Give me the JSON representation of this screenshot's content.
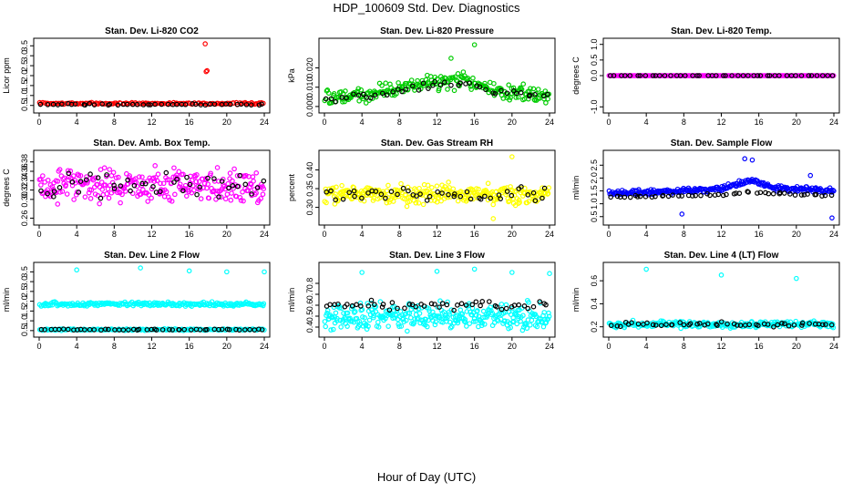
{
  "figure": {
    "title": "HDP_100609  Std. Dev. Diagnostics",
    "xlabel": "Hour of Day (UTC)"
  },
  "chart_data": [
    {
      "type": "scatter",
      "title": "Stan. Dev. Li-820 CO2",
      "ylabel": "Licor ppm",
      "xlim": [
        0,
        24
      ],
      "xticks": [
        0,
        4,
        8,
        12,
        16,
        20,
        24
      ],
      "ylim": [
        0.35,
        3.65
      ],
      "yticks": [
        "0.5",
        "1.0",
        "1.5",
        "2.0",
        "2.5",
        "3.0",
        "3.5"
      ],
      "ytick_values": [
        0.5,
        1,
        1.5,
        2,
        2.5,
        3,
        3.5
      ],
      "series": [
        {
          "color": "#ff0000",
          "pattern": {
            "center": 0.6,
            "spread": 0.07,
            "count": 130
          },
          "outliers": [
            [
              17.7,
              3.6
            ],
            [
              17.8,
              2.2
            ],
            [
              17.9,
              2.25
            ]
          ]
        },
        {
          "color": "#000000",
          "pattern": {
            "center": 0.55,
            "spread": 0.05,
            "count": 45
          }
        }
      ]
    },
    {
      "type": "scatter",
      "title": "Stan. Dev. Li-820 Pressure",
      "ylabel": "kPa",
      "xlim": [
        0,
        24
      ],
      "xticks": [
        0,
        4,
        8,
        12,
        16,
        20,
        24
      ],
      "ylim": [
        -0.001,
        0.033
      ],
      "yticks": [
        "0.000",
        "0.010",
        "0.020"
      ],
      "ytick_values": [
        0,
        0.01,
        0.02
      ],
      "series": [
        {
          "color": "#00cc00",
          "pattern": {
            "profile": [
              [
                0,
                0.004
              ],
              [
                4,
                0.005
              ],
              [
                8,
                0.01
              ],
              [
                12,
                0.013
              ],
              [
                15,
                0.014
              ],
              [
                18,
                0.008
              ],
              [
                24,
                0.006
              ]
            ],
            "spread": 0.006,
            "count": 240
          },
          "outliers": [
            [
              16,
              0.032
            ],
            [
              13.5,
              0.025
            ]
          ]
        },
        {
          "color": "#000000",
          "pattern": {
            "profile": [
              [
                0,
                0.004
              ],
              [
                4,
                0.005
              ],
              [
                8,
                0.009
              ],
              [
                12,
                0.011
              ],
              [
                15,
                0.012
              ],
              [
                18,
                0.007
              ],
              [
                24,
                0.006
              ]
            ],
            "spread": 0.003,
            "count": 45
          }
        }
      ]
    },
    {
      "type": "scatter",
      "title": "Stan. Dev. Li-820 Temp.",
      "ylabel": "degrees C",
      "xlim": [
        0,
        24
      ],
      "xticks": [
        0,
        4,
        8,
        12,
        16,
        20,
        24
      ],
      "ylim": [
        -1.05,
        1.05
      ],
      "yticks": [
        "-1.0",
        "0.0",
        "0.5",
        "1.0"
      ],
      "ytick_values": [
        -1,
        0,
        0.5,
        1
      ],
      "series": [
        {
          "color": "#ff00ff",
          "pattern": {
            "center": 0,
            "spread": 0,
            "count": 220
          }
        },
        {
          "color": "#000000",
          "pattern": {
            "center": 0,
            "spread": 0,
            "count": 45
          }
        }
      ]
    },
    {
      "type": "scatter",
      "title": "Stan. Dev. Amb. Box Temp.",
      "ylabel": "degrees C",
      "xlim": [
        0,
        24
      ],
      "xticks": [
        0,
        4,
        8,
        12,
        16,
        20,
        24
      ],
      "ylim": [
        0.255,
        0.395
      ],
      "yticks": [
        "0.26",
        "0.30",
        "0.32",
        "0.34",
        "0.36",
        "0.38"
      ],
      "ytick_values": [
        0.26,
        0.3,
        0.32,
        0.34,
        0.36,
        0.38
      ],
      "series": [
        {
          "color": "#ff00ff",
          "pattern": {
            "center": 0.33,
            "spread": 0.05,
            "count": 280
          }
        },
        {
          "color": "#000000",
          "pattern": {
            "center": 0.33,
            "spread": 0.04,
            "count": 45
          }
        }
      ]
    },
    {
      "type": "scatter",
      "title": "Stan. Dev. Gas Stream RH",
      "ylabel": "percent",
      "xlim": [
        0,
        24
      ],
      "xticks": [
        0,
        4,
        8,
        12,
        16,
        20,
        24
      ],
      "ylim": [
        0.265,
        0.44
      ],
      "yticks": [
        "0.30",
        "0.35",
        "0.40"
      ],
      "ytick_values": [
        0.3,
        0.35,
        0.4
      ],
      "series": [
        {
          "color": "#ffff00",
          "pattern": {
            "center": 0.335,
            "spread": 0.035,
            "count": 300
          },
          "outliers": [
            [
              20,
              0.435
            ],
            [
              18,
              0.27
            ]
          ]
        },
        {
          "color": "#000000",
          "pattern": {
            "center": 0.335,
            "spread": 0.025,
            "count": 45
          }
        }
      ]
    },
    {
      "type": "scatter",
      "title": "Stan. Dev. Sample Flow",
      "ylabel": "ml/min",
      "xlim": [
        0,
        24
      ],
      "xticks": [
        0,
        4,
        8,
        12,
        16,
        20,
        24
      ],
      "ylim": [
        0.35,
        2.9
      ],
      "yticks": [
        "0.5",
        "1.0",
        "1.5",
        "2.0",
        "2.5"
      ],
      "ytick_values": [
        0.5,
        1,
        1.5,
        2,
        2.5
      ],
      "series": [
        {
          "color": "#0000ff",
          "pattern": {
            "profile": [
              [
                0,
                1.4
              ],
              [
                8,
                1.5
              ],
              [
                12,
                1.6
              ],
              [
                15,
                1.9
              ],
              [
                18,
                1.6
              ],
              [
                24,
                1.5
              ]
            ],
            "spread": 0.15,
            "count": 260
          },
          "outliers": [
            [
              14.5,
              2.75
            ],
            [
              15.3,
              2.7
            ],
            [
              7.8,
              0.6
            ],
            [
              23.8,
              0.45
            ],
            [
              21.5,
              2.1
            ]
          ]
        },
        {
          "color": "#000000",
          "pattern": {
            "profile": [
              [
                0,
                1.25
              ],
              [
                8,
                1.3
              ],
              [
                12,
                1.35
              ],
              [
                15,
                1.45
              ],
              [
                18,
                1.4
              ],
              [
                24,
                1.3
              ]
            ],
            "spread": 0.07,
            "count": 50
          }
        }
      ]
    },
    {
      "type": "scatter",
      "title": "Stan. Dev. Line 2 Flow",
      "ylabel": "ml/min",
      "xlim": [
        0,
        24
      ],
      "xticks": [
        0,
        4,
        8,
        12,
        16,
        20,
        24
      ],
      "ylim": [
        0.4,
        3.75
      ],
      "yticks": [
        "0.5",
        "1.0",
        "1.5",
        "2.0",
        "2.5",
        "3.0",
        "3.5"
      ],
      "ytick_values": [
        0.5,
        1,
        1.5,
        2,
        2.5,
        3,
        3.5
      ],
      "series": [
        {
          "color": "#00ffff",
          "pattern": {
            "center": 1.85,
            "spread": 0.15,
            "count": 220
          },
          "outliers": [
            [
              4,
              3.6
            ],
            [
              10.8,
              3.7
            ],
            [
              16,
              3.55
            ],
            [
              20,
              3.5
            ],
            [
              24,
              3.5
            ]
          ]
        },
        {
          "color": "#00ffff",
          "pattern": {
            "center": 0.55,
            "spread": 0.06,
            "count": 180
          }
        },
        {
          "color": "#000000",
          "pattern": {
            "center": 0.55,
            "spread": 0.04,
            "count": 50
          }
        }
      ]
    },
    {
      "type": "scatter",
      "title": "Stan. Dev. Line 3 Flow",
      "ylabel": "ml/min",
      "xlim": [
        0,
        24
      ],
      "xticks": [
        0,
        4,
        8,
        12,
        16,
        20,
        24
      ],
      "ylim": [
        0.35,
        0.95
      ],
      "yticks": [
        "0.4",
        "0.5",
        "0.6",
        "0.7",
        "0.8"
      ],
      "ytick_values": [
        0.4,
        0.5,
        0.6,
        0.7,
        0.8
      ],
      "series": [
        {
          "color": "#00ffff",
          "pattern": {
            "center": 0.5,
            "spread": 0.18,
            "count": 320
          },
          "outliers": [
            [
              4,
              0.9
            ],
            [
              12,
              0.91
            ],
            [
              16,
              0.93
            ],
            [
              20,
              0.9
            ],
            [
              24,
              0.89
            ]
          ]
        },
        {
          "color": "#000000",
          "pattern": {
            "center": 0.6,
            "spread": 0.06,
            "count": 50
          }
        }
      ]
    },
    {
      "type": "scatter",
      "title": "Stan. Dev. Line 4 (LT) Flow",
      "ylabel": "ml/min",
      "xlim": [
        0,
        24
      ],
      "xticks": [
        0,
        4,
        8,
        12,
        16,
        20,
        24
      ],
      "ylim": [
        0.15,
        0.72
      ],
      "yticks": [
        "0.2",
        "0.4",
        "0.6"
      ],
      "ytick_values": [
        0.2,
        0.4,
        0.6
      ],
      "series": [
        {
          "color": "#00ffff",
          "pattern": {
            "center": 0.22,
            "spread": 0.04,
            "count": 260
          },
          "outliers": [
            [
              4,
              0.7
            ],
            [
              12,
              0.65
            ],
            [
              20,
              0.62
            ]
          ]
        },
        {
          "color": "#000000",
          "pattern": {
            "center": 0.22,
            "spread": 0.03,
            "count": 50
          }
        }
      ]
    }
  ]
}
